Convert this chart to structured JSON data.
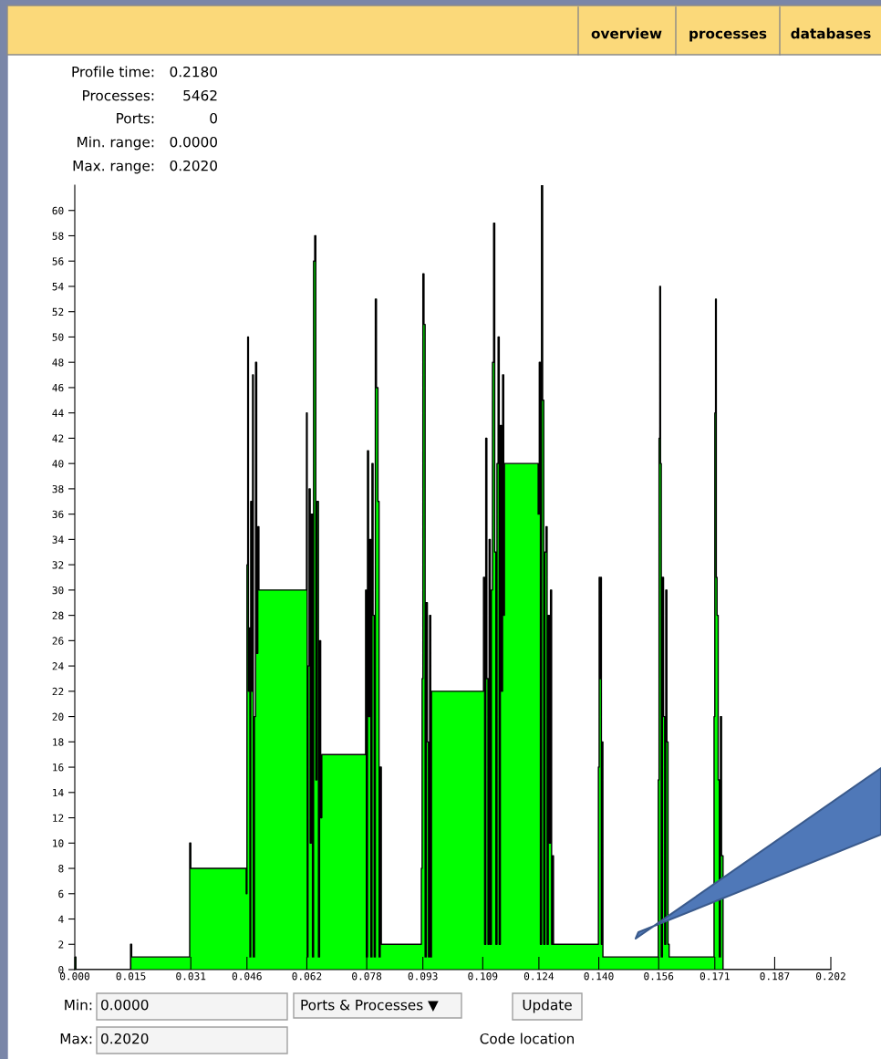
{
  "chart_data": {
    "type": "area",
    "series": [
      {
        "color": "#00ff00",
        "x": [
          0,
          0.0003,
          0.0149,
          0.0152,
          0.0307,
          0.031,
          0.0458,
          0.046,
          0.0462,
          0.0464,
          0.0466,
          0.0468,
          0.047,
          0.0473,
          0.0475,
          0.0477,
          0.048,
          0.0483,
          0.0486,
          0.0489,
          0.0492,
          0.0619,
          0.0621,
          0.0623,
          0.0626,
          0.0629,
          0.0632,
          0.0635,
          0.0638,
          0.0641,
          0.0644,
          0.0647,
          0.0651,
          0.0654,
          0.0657,
          0.066,
          0.0777,
          0.0779,
          0.0782,
          0.0785,
          0.0788,
          0.0791,
          0.0794,
          0.0797,
          0.08,
          0.0803,
          0.0806,
          0.081,
          0.0813,
          0.0816,
          0.0819,
          0.0926,
          0.0928,
          0.093,
          0.0933,
          0.0936,
          0.0939,
          0.0942,
          0.0945,
          0.0948,
          0.0951,
          0.0953,
          0.1092,
          0.1095,
          0.1098,
          0.1101,
          0.1104,
          0.1107,
          0.111,
          0.1113,
          0.1116,
          0.1119,
          0.1122,
          0.1125,
          0.1128,
          0.1131,
          0.1134,
          0.1137,
          0.114,
          0.1143,
          0.1146,
          0.1148,
          0.1238,
          0.1241,
          0.1244,
          0.1247,
          0.125,
          0.1253,
          0.1256,
          0.1259,
          0.1262,
          0.1265,
          0.1268,
          0.1271,
          0.1274,
          0.1277,
          0.1279,
          0.1399,
          0.1401,
          0.1403,
          0.1405,
          0.1407,
          0.1409,
          0.1411,
          0.1413,
          0.1559,
          0.1561,
          0.1563,
          0.1565,
          0.1567,
          0.157,
          0.1573,
          0.1576,
          0.1579,
          0.1582,
          0.1585,
          0.1588,
          0.1708,
          0.171,
          0.1712,
          0.1714,
          0.1716,
          0.1719,
          0.1722,
          0.1725,
          0.1728,
          0.1732,
          0.202
        ],
        "values": [
          1,
          0,
          2,
          1,
          10,
          8,
          6,
          32,
          50,
          22,
          27,
          1,
          37,
          22,
          47,
          1,
          20,
          48,
          25,
          35,
          30,
          44,
          1,
          24,
          38,
          10,
          36,
          1,
          56,
          58,
          15,
          37,
          1,
          26,
          12,
          17,
          30,
          1,
          41,
          20,
          34,
          1,
          40,
          28,
          1,
          53,
          46,
          37,
          1,
          16,
          2,
          8,
          23,
          55,
          51,
          1,
          29,
          18,
          1,
          28,
          1,
          22,
          31,
          2,
          42,
          23,
          2,
          34,
          2,
          30,
          48,
          59,
          33,
          2,
          40,
          50,
          2,
          43,
          22,
          47,
          28,
          40,
          36,
          48,
          2,
          62,
          45,
          2,
          33,
          35,
          2,
          28,
          10,
          30,
          2,
          9,
          2,
          16,
          31,
          23,
          31,
          2,
          18,
          1,
          1,
          15,
          42,
          54,
          40,
          1,
          31,
          20,
          2,
          30,
          18,
          2,
          1,
          20,
          44,
          53,
          31,
          28,
          15,
          1,
          20,
          9,
          0,
          0
        ]
      }
    ],
    "xlim": [
      0,
      0.202
    ],
    "ylim": [
      0,
      62
    ],
    "xticks": [
      {
        "value": 0,
        "label": "0.000"
      },
      0.015,
      0.031,
      0.046,
      0.062,
      0.078,
      0.093,
      0.109,
      0.124,
      {
        "value": 0.14,
        "label": "0.140"
      },
      0.156,
      0.171,
      0.187,
      0.202
    ],
    "yticks": [
      0,
      2,
      4,
      6,
      8,
      10,
      12,
      14,
      16,
      18,
      20,
      22,
      24,
      26,
      28,
      30,
      32,
      34,
      36,
      38,
      40,
      42,
      44,
      46,
      48,
      50,
      52,
      54,
      56,
      58,
      60
    ],
    "grid": false,
    "legend": false,
    "annotations": [
      "overview",
      "processes",
      "databases",
      "Profile time:",
      "0.2180",
      "Processes:",
      "5462",
      "Ports:",
      "0",
      "Min. range:",
      "0.0000",
      "Max. range:",
      "0.2020",
      "Min:",
      "0.0000",
      "Ports & Processes ▼",
      "Update",
      "Max:",
      "0.2020",
      "Code location"
    ]
  }
}
